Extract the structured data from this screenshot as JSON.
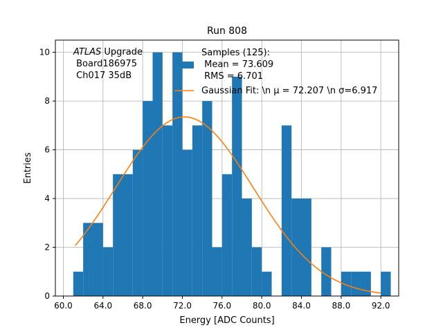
{
  "chart_data": {
    "type": "bar",
    "title": "Run 808",
    "xlabel": "Energy [ADC Counts]",
    "ylabel": "Entries",
    "xlim": [
      59.2,
      93.8
    ],
    "ylim": [
      0,
      10.5
    ],
    "grid": true,
    "x_ticks": [
      60,
      64,
      68,
      72,
      76,
      80,
      84,
      88,
      92
    ],
    "x_tick_labels": [
      "60.0",
      "64.0",
      "68.0",
      "72.0",
      "76.0",
      "80.0",
      "84.0",
      "88.0",
      "92.0"
    ],
    "y_ticks": [
      0,
      2,
      4,
      6,
      8,
      10
    ],
    "y_tick_labels": [
      "0",
      "2",
      "4",
      "6",
      "8",
      "10"
    ],
    "bin_edges": [
      61.0,
      62.0,
      63.0,
      64.0,
      65.0,
      66.0,
      67.0,
      68.0,
      69.0,
      70.0,
      71.0,
      72.0,
      73.0,
      74.0,
      75.0,
      76.0,
      77.0,
      78.0,
      79.0,
      80.0,
      81.0,
      82.0,
      83.0,
      84.0,
      85.0,
      86.0,
      87.0,
      88.0,
      89.0,
      90.0,
      91.0,
      92.0,
      93.0
    ],
    "counts": [
      1,
      3,
      3,
      2,
      5,
      5,
      6,
      8,
      10,
      7,
      10,
      6,
      7,
      8,
      2,
      5,
      9,
      4,
      2,
      1,
      0,
      7,
      4,
      4,
      0,
      2,
      0,
      1,
      1,
      1,
      0,
      1
    ],
    "bar_color": "#1f77b4",
    "fit": {
      "name": "Gaussian Fit",
      "mu": 72.207,
      "sigma": 6.917,
      "amplitude": 7.35,
      "x_range": [
        61.2,
        92.0
      ],
      "color": "#ff7f0e"
    },
    "legend": {
      "location": "top-right",
      "hist_entry": [
        "Samples (125):",
        " Mean = 73.609",
        " RMS = 6.701"
      ],
      "fit_entry": "Gaussian Fit: \\n μ = 72.207 \\n σ=6.917"
    },
    "annotation": {
      "title_italic": "ATLAS",
      "title_rest": " Upgrade",
      "lines": [
        " Board186975",
        " Ch017 35dB"
      ]
    }
  }
}
